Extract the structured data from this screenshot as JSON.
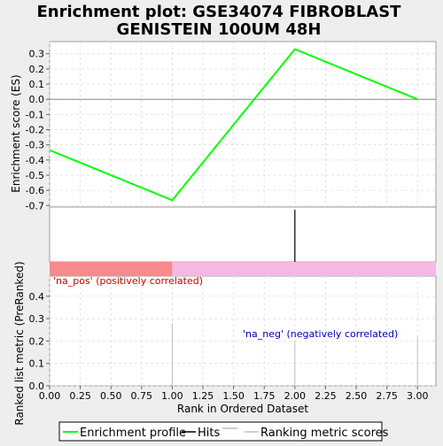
{
  "chart_data": {
    "type": "line",
    "title_line1": "Enrichment plot: GSE34074 FIBROBLAST",
    "title_line2": "GENISTEIN 100UM 48H",
    "xlabel": "Rank in Ordered Dataset",
    "top_ylabel": "Enrichment score (ES)",
    "bottom_ylabel": "Ranked list metric (PreRanked)",
    "x_ticks": [
      0.0,
      0.25,
      0.5,
      0.75,
      1.0,
      1.25,
      1.5,
      1.75,
      2.0,
      2.25,
      2.5,
      2.75,
      3.0
    ],
    "x_tick_labels": [
      "0.00",
      "0.25",
      "0.50",
      "0.75",
      "1.00",
      "1.25",
      "1.50",
      "1.75",
      "2.00",
      "2.25",
      "2.50",
      "2.75",
      "3.00"
    ],
    "xlim": [
      0,
      3.15
    ],
    "top_yticks": [
      0.3,
      0.2,
      0.1,
      0.0,
      -0.1,
      -0.2,
      -0.3,
      -0.4,
      -0.5,
      -0.6,
      -0.7
    ],
    "top_ytick_labels": [
      "0.3",
      "0.2",
      "0.1",
      "0.0",
      "-0.1",
      "-0.2",
      "-0.3",
      "-0.4",
      "-0.5",
      "-0.6",
      "-0.7"
    ],
    "top_ylim": [
      -0.71,
      0.38
    ],
    "bottom_yticks": [
      0.0,
      0.1,
      0.2,
      0.3,
      0.4
    ],
    "bottom_ytick_labels": [
      "0.0",
      "0.1",
      "0.2",
      "0.3",
      "0.4"
    ],
    "bottom_ylim": [
      0,
      0.49
    ],
    "series": [
      {
        "name": "Enrichment profile",
        "color": "#00ff00",
        "x": [
          0,
          1,
          2,
          3
        ],
        "values": [
          -0.335,
          -0.665,
          0.33,
          0.0
        ]
      }
    ],
    "hits": [
      2
    ],
    "ranked_metric": {
      "x": [
        1,
        2,
        3
      ],
      "values": [
        0.28,
        0.2,
        0.22
      ],
      "color": "#c0c0c0"
    },
    "pos_label": "'na_pos' (positively correlated)",
    "pos_label_color": "#cc0000",
    "neg_label": "'na_neg' (negatively correlated)",
    "neg_label_color": "#0000bb",
    "bar_pos_color": "#f78a8a",
    "bar_neg_color": "#f5b8e4",
    "bar_split": 1,
    "legend": [
      "Enrichment profile",
      "Hits",
      "Ranking metric scores"
    ],
    "legend_colors": [
      "#00ff00",
      "#000000",
      "#c0c0c0"
    ],
    "grid": true
  }
}
